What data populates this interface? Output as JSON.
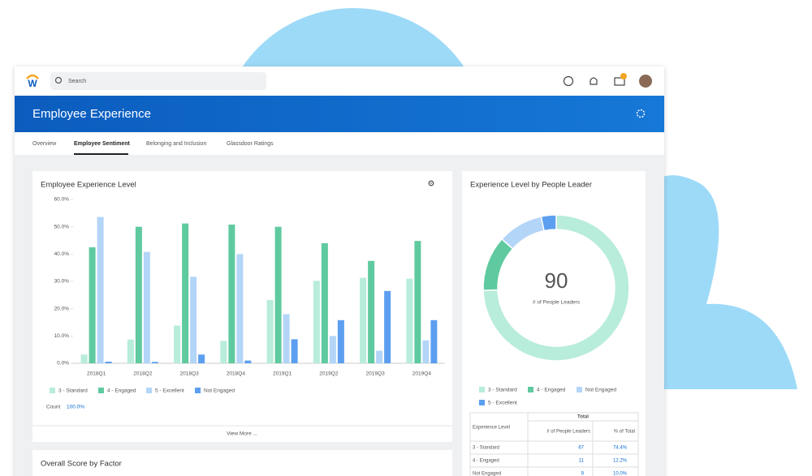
{
  "header": {
    "search": "Search",
    "title": "Employee Experience"
  },
  "tabs": [
    "Overview",
    "Employee Sentiment",
    "Belonging and Inclusion",
    "Glassdoor Ratings"
  ],
  "chart_data": [
    {
      "type": "bar",
      "title": "Employee Experience Level",
      "categories": [
        "2018Q1",
        "2018Q2",
        "2018Q3",
        "2018Q4",
        "2019Q1",
        "2019Q2",
        "2019Q3",
        "2019Q4"
      ],
      "series": [
        {
          "name": "3 - Standard",
          "color": "#b8ecdb",
          "values": [
            3.2,
            8.7,
            13.8,
            8.2,
            23.2,
            30.2,
            31.3,
            31.0
          ]
        },
        {
          "name": "4 - Engaged",
          "color": "#5fca9f",
          "values": [
            42.5,
            50.0,
            51.2,
            50.8,
            50.0,
            44.0,
            37.5,
            44.8
          ]
        },
        {
          "name": "5 - Excellent",
          "color": "#b3d5f8",
          "values": [
            53.6,
            40.8,
            31.7,
            40.0,
            18.0,
            10.0,
            4.6,
            8.4
          ]
        },
        {
          "name": "Not Engaged",
          "color": "#5c9ff0",
          "values": [
            0.6,
            0.5,
            3.2,
            1.0,
            8.8,
            15.8,
            26.5,
            15.8
          ]
        }
      ],
      "ylim": [
        0,
        60
      ],
      "yticks": [
        {
          "value": 0,
          "label": "0.0%"
        },
        {
          "value": 10,
          "label": "10.0%"
        },
        {
          "value": 20,
          "label": "20.0%"
        },
        {
          "value": 30,
          "label": "30.0%"
        },
        {
          "value": 40,
          "label": "40.0%"
        },
        {
          "value": 50,
          "label": "50.0%"
        },
        {
          "value": 60,
          "label": "60.0%"
        }
      ],
      "count_label": "Count",
      "count_value": "100.0%",
      "footer": "View More ..."
    },
    {
      "type": "pie",
      "title": "Experience Level by People Leader",
      "categories": [
        "3 - Standard",
        "4 - Engaged",
        "Not Engaged",
        "5 - Excellent"
      ],
      "values": [
        67,
        11,
        9,
        3
      ],
      "colors": [
        "#b8ecdb",
        "#5fca9f",
        "#b3d5f8",
        "#5c9ff0"
      ],
      "center_value": 90,
      "center_label": "# of People Leaders"
    }
  ],
  "table": {
    "group": "Total",
    "columns": [
      "Experience Level",
      "# of People Leaders",
      "% of Total"
    ],
    "rows": [
      [
        "3 - Standard",
        67,
        "74.4%"
      ],
      [
        "4 - Engaged",
        11,
        "12.2%"
      ],
      [
        "Not Engaged",
        9,
        "10.0%"
      ]
    ]
  },
  "card3": {
    "title": "Overall Score by Factor"
  }
}
